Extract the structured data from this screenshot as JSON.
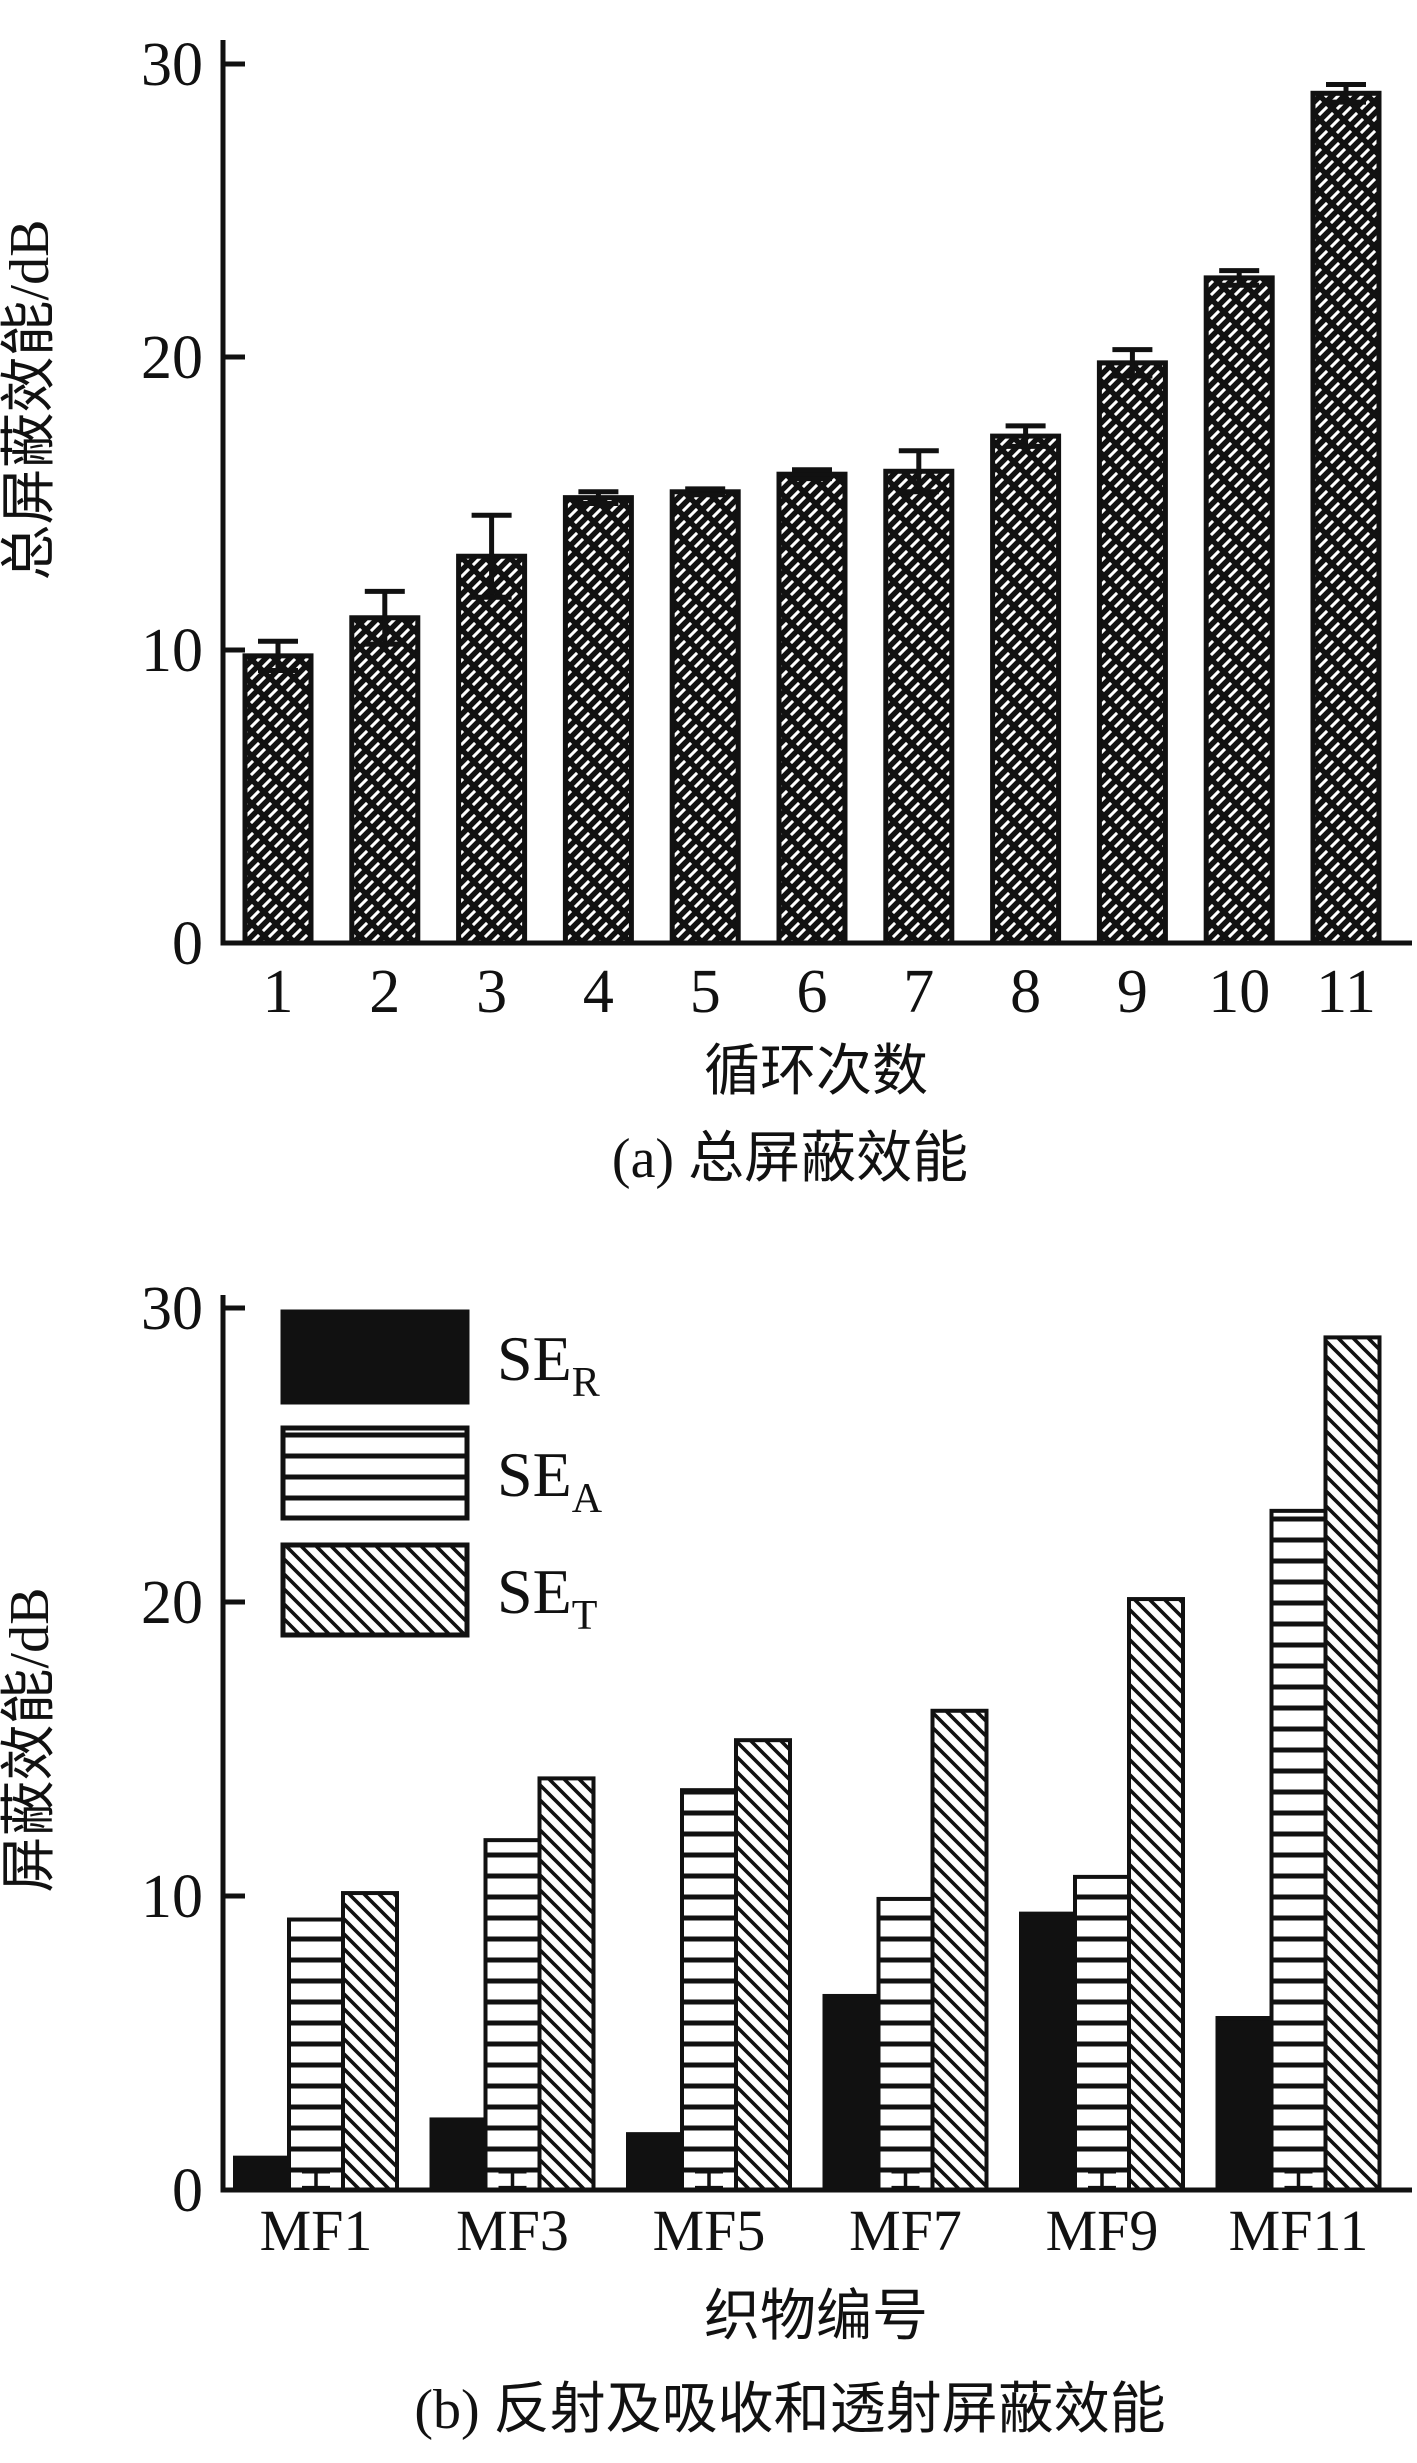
{
  "colors": {
    "ink": "#111111",
    "background": "#ffffff"
  },
  "chart_data": [
    {
      "id": "a",
      "type": "bar",
      "title": "(a) 总屏蔽效能",
      "xlabel": "循环次数",
      "ylabel": "总屏蔽效能/dB",
      "categories": [
        "1",
        "2",
        "3",
        "4",
        "5",
        "6",
        "7",
        "8",
        "9",
        "10",
        "11"
      ],
      "values": [
        9.8,
        11.1,
        13.2,
        15.2,
        15.4,
        16.0,
        16.1,
        17.3,
        19.8,
        22.7,
        29.0
      ],
      "errors": [
        0.5,
        0.9,
        1.4,
        0.2,
        0.1,
        0.15,
        0.7,
        0.35,
        0.45,
        0.25,
        0.3
      ],
      "yticks": [
        0,
        10,
        20,
        30
      ],
      "ylim": [
        0,
        30
      ],
      "grid": false,
      "bar_pattern": "crosshatch",
      "bar_outline": "#111111"
    },
    {
      "id": "b",
      "type": "bar",
      "title": "(b) 反射及吸收和透射屏蔽效能",
      "xlabel": "织物编号",
      "ylabel": "屏蔽效能/dB",
      "categories": [
        "MF1",
        "MF3",
        "MF5",
        "MF7",
        "MF9",
        "MF11"
      ],
      "series": [
        {
          "name": "SE_R",
          "label_main": "SE",
          "label_sub": "R",
          "pattern": "solid-black",
          "values": [
            1.1,
            2.4,
            1.9,
            6.6,
            9.4,
            5.85
          ]
        },
        {
          "name": "SE_A",
          "label_main": "SE",
          "label_sub": "A",
          "pattern": "horizontal-lines",
          "values": [
            9.2,
            11.9,
            13.6,
            9.9,
            10.65,
            23.1
          ],
          "base_whisker": {
            "low": 0.08,
            "high": 0.62
          }
        },
        {
          "name": "SE_T",
          "label_main": "SE",
          "label_sub": "T",
          "pattern": "diagonal-hatch",
          "values": [
            10.1,
            14.0,
            15.3,
            16.3,
            20.1,
            29.0
          ]
        }
      ],
      "yticks": [
        0,
        10,
        20,
        30
      ],
      "ylim": [
        0,
        30
      ],
      "legend_position": "upper-left",
      "grid": false
    }
  ]
}
